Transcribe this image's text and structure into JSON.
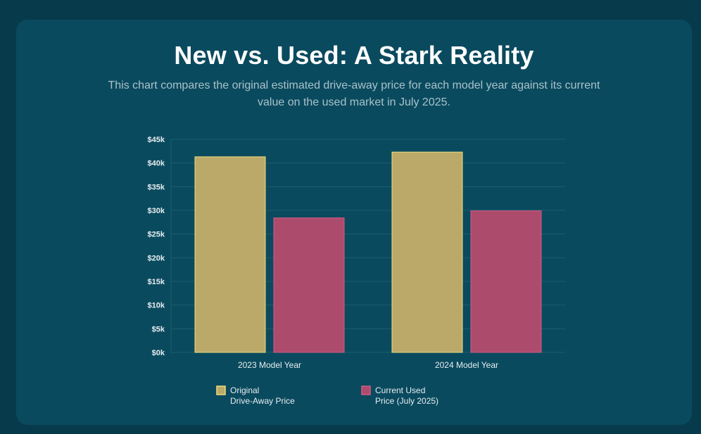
{
  "header": {
    "title": "New vs. Used: A Stark Reality",
    "subtitle": "This chart compares the original estimated drive-away price for each model year against its current value on the used market in July 2025."
  },
  "chart_data": {
    "type": "bar",
    "categories": [
      "2023 Model Year",
      "2024 Model Year"
    ],
    "series": [
      {
        "name_lines": [
          "Original",
          "Drive-Away Price"
        ],
        "values": [
          41300,
          42300
        ],
        "color": "#bba96a",
        "border_color": "#f0dd7a"
      },
      {
        "name_lines": [
          "Current Used",
          "Price (July 2025)"
        ],
        "values": [
          28400,
          29900
        ],
        "color": "#ad4b6d",
        "border_color": "#d45a84"
      }
    ],
    "ylim": [
      0,
      45000
    ],
    "yticks": [
      0,
      5000,
      10000,
      15000,
      20000,
      25000,
      30000,
      35000,
      40000,
      45000
    ],
    "ytick_labels": [
      "$0k",
      "$5k",
      "$10k",
      "$15k",
      "$20k",
      "$25k",
      "$30k",
      "$35k",
      "$40k",
      "$45k"
    ],
    "grid": true,
    "legend_position": "bottom"
  },
  "colors": {
    "page_background": "#073a4a",
    "card_background": "#0a4a5e",
    "grid": "#1b5f6c"
  }
}
